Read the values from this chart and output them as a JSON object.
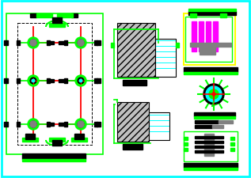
{
  "bg_color": "#ffffff",
  "border_color": "#00ffff",
  "green": "#00ff00",
  "red": "#ff0000",
  "black": "#000000",
  "cyan": "#00ffff",
  "yellow": "#ffff00",
  "magenta": "#ff00ff",
  "gray": "#808080",
  "lightgray": "#c0c0c0"
}
